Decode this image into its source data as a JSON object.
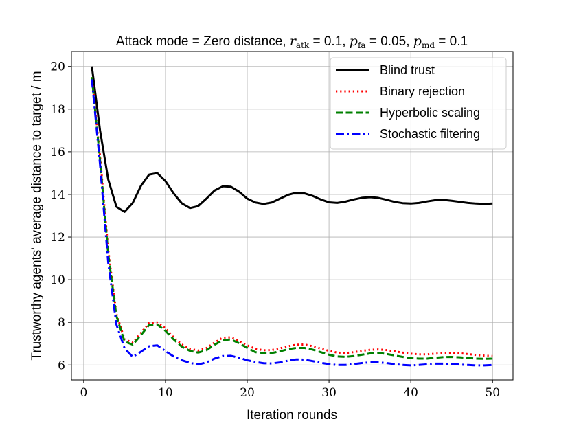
{
  "chart_data": {
    "type": "line",
    "title": {
      "prefix": "Attack mode = Zero distance, ",
      "r_sym": "r",
      "r_sub": "atk",
      "r_val": " = 0.1, ",
      "pfa_sym": "p",
      "pfa_sub": "fa",
      "pfa_val": " = 0.05, ",
      "pmd_sym": "p",
      "pmd_sub": "md",
      "pmd_val": " = 0.1"
    },
    "xlabel": "Iteration rounds",
    "ylabel": "Trustworthy agents' average distance to target / m",
    "xlim": [
      -1.5,
      52.5
    ],
    "ylim": [
      5.3,
      20.7
    ],
    "xticks": [
      0,
      10,
      20,
      30,
      40,
      50
    ],
    "yticks": [
      6,
      8,
      10,
      12,
      14,
      16,
      18,
      20
    ],
    "grid": true,
    "legend_position": "top-right",
    "x": [
      1,
      2,
      3,
      4,
      5,
      6,
      7,
      8,
      9,
      10,
      11,
      12,
      13,
      14,
      15,
      16,
      17,
      18,
      19,
      20,
      21,
      22,
      23,
      24,
      25,
      26,
      27,
      28,
      29,
      30,
      31,
      32,
      33,
      34,
      35,
      36,
      37,
      38,
      39,
      40,
      41,
      42,
      43,
      44,
      45,
      46,
      47,
      48,
      49,
      50
    ],
    "series": [
      {
        "name": "Blind trust",
        "color": "#000000",
        "dash": "solid",
        "values": [
          20.0,
          17.0,
          14.7,
          13.42,
          13.18,
          13.6,
          14.4,
          14.93,
          15.0,
          14.62,
          14.05,
          13.58,
          13.36,
          13.45,
          13.8,
          14.18,
          14.38,
          14.36,
          14.13,
          13.8,
          13.62,
          13.55,
          13.62,
          13.8,
          13.98,
          14.08,
          14.05,
          13.93,
          13.76,
          13.63,
          13.6,
          13.66,
          13.76,
          13.84,
          13.87,
          13.84,
          13.75,
          13.65,
          13.59,
          13.57,
          13.6,
          13.67,
          13.73,
          13.74,
          13.7,
          13.65,
          13.6,
          13.57,
          13.55,
          13.57
        ]
      },
      {
        "name": "Binary rejection",
        "color": "#ff0000",
        "dash": "dotted",
        "values": [
          19.5,
          15.8,
          11.4,
          8.4,
          7.2,
          7.05,
          7.5,
          7.98,
          8.0,
          7.72,
          7.3,
          6.96,
          6.76,
          6.68,
          6.79,
          7.05,
          7.28,
          7.3,
          7.12,
          6.92,
          6.76,
          6.69,
          6.7,
          6.78,
          6.88,
          6.95,
          6.96,
          6.88,
          6.77,
          6.66,
          6.58,
          6.56,
          6.6,
          6.66,
          6.71,
          6.73,
          6.7,
          6.64,
          6.58,
          6.53,
          6.5,
          6.5,
          6.53,
          6.56,
          6.57,
          6.55,
          6.51,
          6.47,
          6.44,
          6.42
        ]
      },
      {
        "name": "Hyperbolic scaling",
        "color": "#008000",
        "dash": "dashed",
        "values": [
          19.5,
          15.6,
          11.2,
          8.3,
          7.1,
          6.95,
          7.4,
          7.88,
          7.9,
          7.6,
          7.2,
          6.86,
          6.66,
          6.58,
          6.69,
          6.95,
          7.16,
          7.2,
          7.02,
          6.8,
          6.6,
          6.56,
          6.56,
          6.64,
          6.74,
          6.8,
          6.8,
          6.72,
          6.6,
          6.48,
          6.4,
          6.38,
          6.42,
          6.48,
          6.54,
          6.56,
          6.52,
          6.45,
          6.38,
          6.32,
          6.3,
          6.3,
          6.34,
          6.37,
          6.38,
          6.36,
          6.33,
          6.3,
          6.29,
          6.3
        ]
      },
      {
        "name": "Stochastic filtering",
        "color": "#0000ff",
        "dash": "dashdot",
        "values": [
          19.4,
          15.4,
          10.8,
          7.9,
          6.78,
          6.38,
          6.62,
          6.88,
          6.92,
          6.65,
          6.4,
          6.22,
          6.1,
          6.02,
          6.12,
          6.3,
          6.42,
          6.43,
          6.34,
          6.22,
          6.14,
          6.08,
          6.07,
          6.12,
          6.2,
          6.26,
          6.25,
          6.18,
          6.1,
          6.04,
          6.0,
          6.0,
          6.04,
          6.09,
          6.12,
          6.12,
          6.09,
          6.04,
          6.0,
          5.98,
          6.0,
          6.03,
          6.06,
          6.06,
          6.05,
          6.02,
          6.0,
          5.98,
          5.98,
          6.0
        ]
      }
    ]
  }
}
